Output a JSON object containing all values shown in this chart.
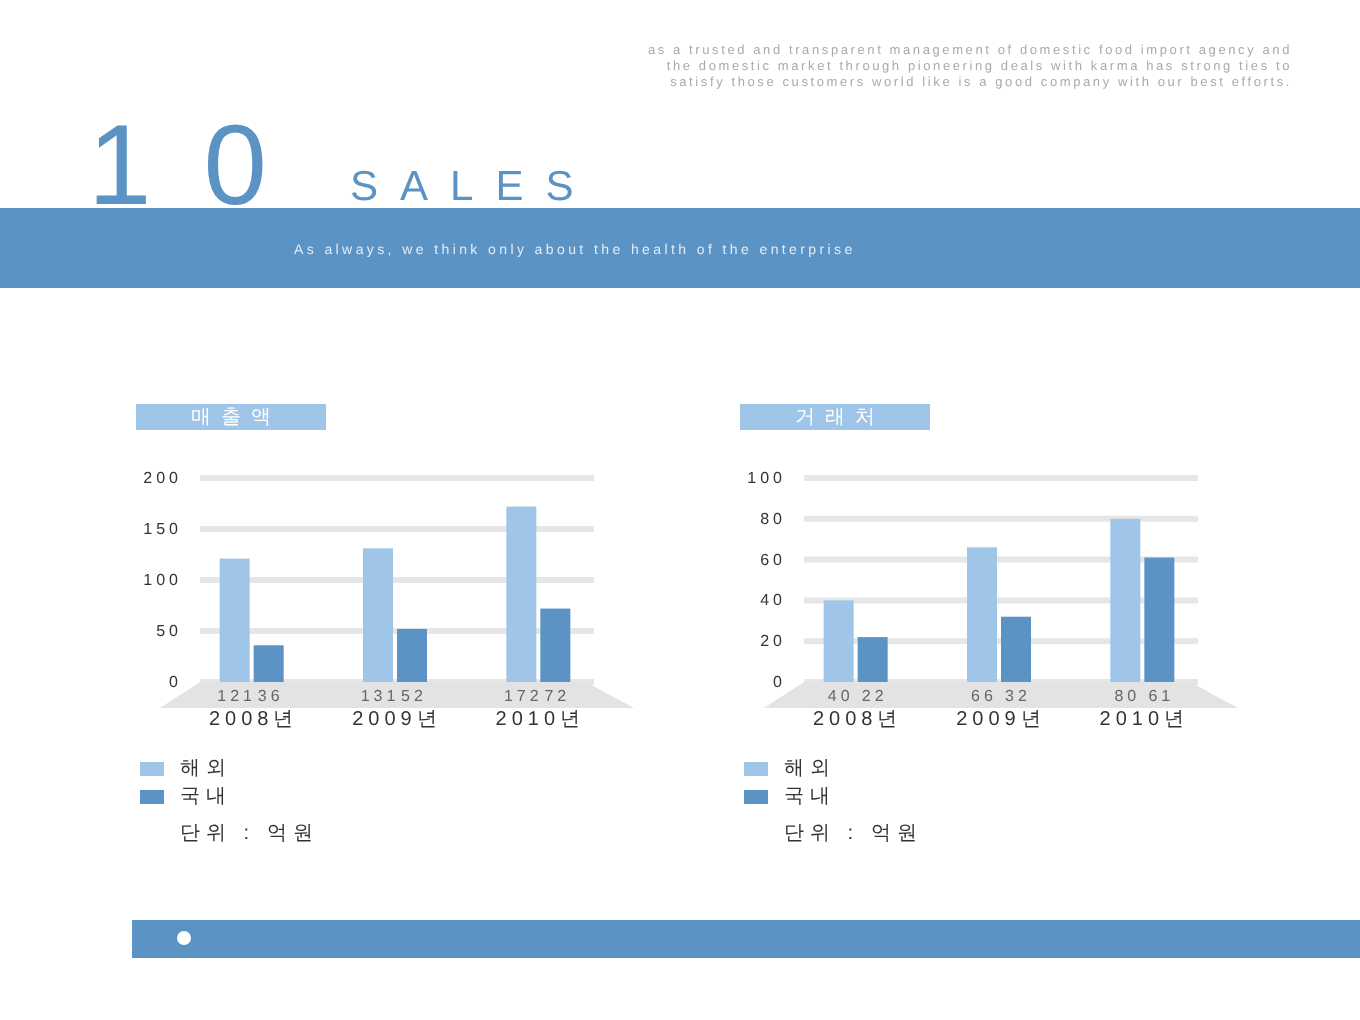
{
  "chart_data": [
    {
      "type": "other",
      "title": "SALES",
      "annotations": [
        "10",
        "as a trusted and transparent management of domestic food import agency and the domestic market through pioneering deals with karma has strong ties to satisfy those customers world like is a good company with our best efforts.",
        "As always, we think only about the health of the enterprise"
      ]
    },
    {
      "type": "bar",
      "title": "매출액",
      "categories": [
        "2008년",
        "2009년",
        "2010년"
      ],
      "series": [
        {
          "name": "해외",
          "color": "#9fc5e8",
          "values": [
            121,
            131,
            172
          ]
        },
        {
          "name": "국내",
          "color": "#5b93c4",
          "values": [
            36,
            52,
            72
          ]
        }
      ],
      "ylim": [
        0,
        200
      ],
      "yticks": [
        0,
        50,
        100,
        150,
        200
      ],
      "grid": "y",
      "legend": "bottom left",
      "data_labels": true,
      "annotations": [
        "단위 : 억원"
      ]
    },
    {
      "type": "bar",
      "title": "거래처",
      "categories": [
        "2008년",
        "2009년",
        "2010년"
      ],
      "series": [
        {
          "name": "해외",
          "color": "#9fc5e8",
          "values": [
            40,
            66,
            80
          ]
        },
        {
          "name": "국내",
          "color": "#5b93c4",
          "values": [
            22,
            32,
            61
          ]
        }
      ],
      "ylim": [
        0,
        100
      ],
      "yticks": [
        0,
        20,
        40,
        60,
        80,
        100
      ],
      "grid": "y",
      "legend": "bottom left",
      "data_labels": true,
      "annotations": [
        "단위 : 억원"
      ]
    }
  ]
}
